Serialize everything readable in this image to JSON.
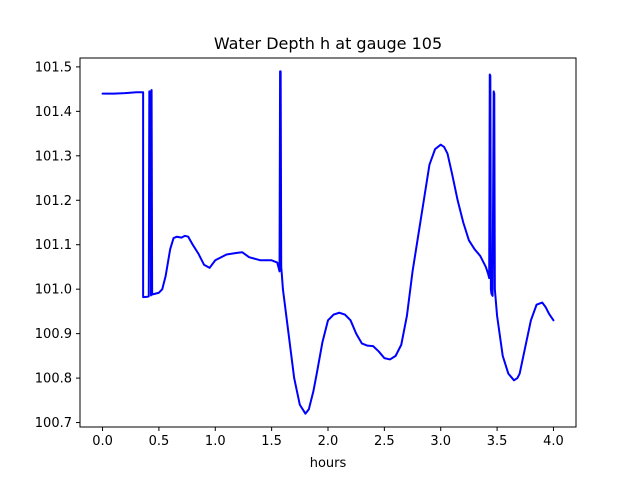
{
  "chart_data": {
    "type": "line",
    "title": "Water Depth h at gauge 105",
    "xlabel": "hours",
    "ylabel": "",
    "xlim": [
      -0.2,
      4.2
    ],
    "ylim": [
      100.69,
      101.52
    ],
    "xticks": [
      0.0,
      0.5,
      1.0,
      1.5,
      2.0,
      2.5,
      3.0,
      3.5,
      4.0
    ],
    "xtick_labels": [
      "0.0",
      "0.5",
      "1.0",
      "1.5",
      "2.0",
      "2.5",
      "3.0",
      "3.5",
      "4.0"
    ],
    "yticks": [
      100.7,
      100.8,
      100.9,
      101.0,
      101.1,
      101.2,
      101.3,
      101.4,
      101.5
    ],
    "ytick_labels": [
      "100.7",
      "100.8",
      "100.9",
      "101.0",
      "101.1",
      "101.2",
      "101.3",
      "101.4",
      "101.5"
    ],
    "grid": false,
    "series": [
      {
        "color": "#0000ff",
        "x": [
          0.0,
          0.1,
          0.2,
          0.3,
          0.36,
          0.36,
          0.4,
          0.41,
          0.415,
          0.42,
          0.425,
          0.43,
          0.435,
          0.44,
          0.5,
          0.53,
          0.56,
          0.6,
          0.63,
          0.66,
          0.7,
          0.73,
          0.76,
          0.8,
          0.85,
          0.9,
          0.95,
          1.0,
          1.1,
          1.2,
          1.24,
          1.3,
          1.4,
          1.5,
          1.55,
          1.57,
          1.575,
          1.58,
          1.585,
          1.59,
          1.6,
          1.65,
          1.7,
          1.75,
          1.8,
          1.83,
          1.87,
          1.9,
          1.95,
          2.0,
          2.05,
          2.1,
          2.15,
          2.2,
          2.25,
          2.3,
          2.35,
          2.4,
          2.45,
          2.5,
          2.55,
          2.6,
          2.65,
          2.7,
          2.75,
          2.8,
          2.85,
          2.9,
          2.95,
          3.0,
          3.03,
          3.06,
          3.1,
          3.15,
          3.2,
          3.25,
          3.3,
          3.35,
          3.4,
          3.42,
          3.43,
          3.435,
          3.44,
          3.445,
          3.45,
          3.46,
          3.47,
          3.475,
          3.48,
          3.485,
          3.49,
          3.5,
          3.55,
          3.6,
          3.65,
          3.68,
          3.7,
          3.75,
          3.8,
          3.85,
          3.9,
          3.93,
          3.96,
          4.0
        ],
        "y": [
          101.44,
          101.44,
          101.441,
          101.443,
          101.443,
          100.982,
          100.983,
          100.984,
          101.445,
          101.445,
          101.44,
          100.986,
          101.448,
          100.988,
          100.992,
          101.0,
          101.03,
          101.09,
          101.115,
          101.118,
          101.116,
          101.12,
          101.118,
          101.1,
          101.08,
          101.055,
          101.048,
          101.065,
          101.078,
          101.082,
          101.083,
          101.072,
          101.065,
          101.065,
          101.06,
          101.04,
          101.49,
          101.49,
          101.05,
          101.035,
          101.0,
          100.9,
          100.8,
          100.74,
          100.72,
          100.73,
          100.77,
          100.81,
          100.88,
          100.93,
          100.943,
          100.947,
          100.943,
          100.93,
          100.9,
          100.878,
          100.873,
          100.872,
          100.86,
          100.845,
          100.842,
          100.85,
          100.875,
          100.94,
          101.04,
          101.12,
          101.2,
          101.28,
          101.315,
          101.325,
          101.32,
          101.305,
          101.26,
          101.2,
          101.15,
          101.11,
          101.09,
          101.075,
          101.05,
          101.035,
          101.025,
          101.483,
          101.48,
          101.0,
          100.99,
          100.985,
          101.445,
          101.44,
          101.0,
          100.985,
          100.97,
          100.94,
          100.85,
          100.81,
          100.795,
          100.8,
          100.81,
          100.87,
          100.93,
          100.965,
          100.97,
          100.96,
          100.945,
          100.93
        ]
      }
    ]
  }
}
